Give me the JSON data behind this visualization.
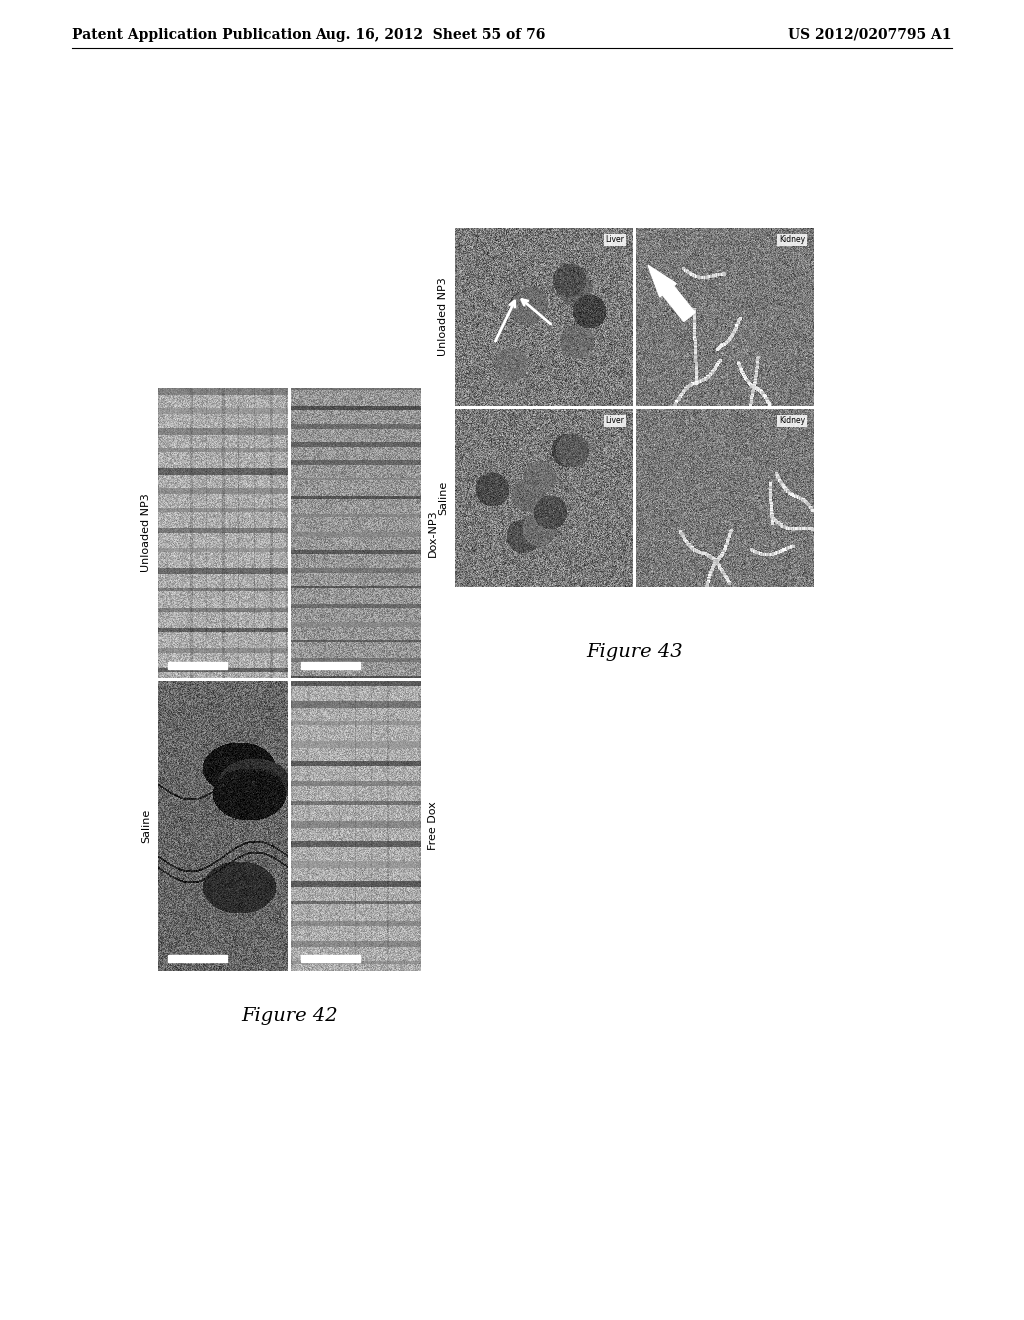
{
  "page_header_left": "Patent Application Publication",
  "page_header_middle": "Aug. 16, 2012  Sheet 55 of 76",
  "page_header_right": "US 2012/0207795 A1",
  "fig42_label": "Figure 42",
  "fig43_label": "Figure 43",
  "fig42_row_labels": [
    "Unloaded NP3",
    "Dox-NP3"
  ],
  "fig42_col_labels": [
    "Saline",
    "Free Dox"
  ],
  "fig43_row_labels": [
    "Unloaded NP3",
    "Saline"
  ],
  "fig43_inner_labels": [
    "Liver",
    "Kidney",
    "Liver",
    "Kidney"
  ],
  "background_color": "#ffffff",
  "header_fontsize": 10,
  "figure_label_fontsize": 14,
  "panel_label_fontsize": 8
}
